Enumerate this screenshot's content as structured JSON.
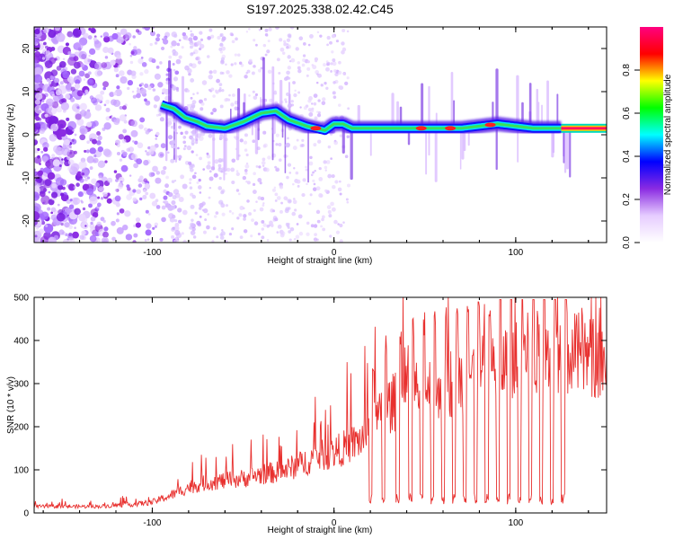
{
  "title": "S197.2025.338.02.42.C45",
  "chart_data": [
    {
      "type": "heatmap",
      "title": "",
      "xlabel": "Height of straight line (km)",
      "ylabel": "Frequency (Hz)",
      "xlim": [
        -165,
        150
      ],
      "ylim": [
        -25,
        25
      ],
      "x_ticks": [
        -100,
        0,
        100
      ],
      "x_tick_labels": [
        "-100",
        "0",
        "100"
      ],
      "y_ticks": [
        -20,
        -10,
        0,
        10,
        20
      ],
      "y_tick_labels": [
        "-20",
        "-10",
        "0",
        "10",
        "20"
      ],
      "ridge": {
        "name": "dominant frequency track",
        "x": [
          -95,
          -88,
          -82,
          -75,
          -70,
          -60,
          -50,
          -40,
          -32,
          -25,
          -15,
          -5,
          0,
          5,
          10,
          20,
          30,
          40,
          50,
          60,
          70,
          80,
          90,
          100,
          110,
          125,
          150
        ],
        "y": [
          7,
          6,
          4,
          3,
          2,
          1.5,
          3,
          5,
          5.5,
          3.5,
          2,
          1,
          2.5,
          2.5,
          1.5,
          1.5,
          1.5,
          1.5,
          1.5,
          1.5,
          1.5,
          2,
          2.5,
          2,
          1.5,
          1.5,
          1.5
        ]
      },
      "colorbar": {
        "label": "Normalized spectral amplitude",
        "range": [
          0,
          1
        ],
        "ticks": [
          0.0,
          0.2,
          0.4,
          0.6,
          0.8
        ],
        "tick_labels": [
          "0.0",
          "0.2",
          "0.4",
          "0.6",
          "0.8"
        ],
        "colors": [
          "#ffffff",
          "#e6ccff",
          "#8a2be2",
          "#0000ff",
          "#00ffff",
          "#00ff00",
          "#ffff00",
          "#ff0000",
          "#ff0080"
        ]
      }
    },
    {
      "type": "line",
      "title": "",
      "xlabel": "Height of straight line (km)",
      "ylabel": "SNR (10 * v/v)",
      "xlim": [
        -165,
        150
      ],
      "ylim": [
        0,
        500
      ],
      "x_ticks": [
        -100,
        0,
        100
      ],
      "x_tick_labels": [
        "-100",
        "0",
        "100"
      ],
      "y_ticks": [
        0,
        100,
        200,
        300,
        400,
        500
      ],
      "y_tick_labels": [
        "0",
        "100",
        "200",
        "300",
        "400",
        "500"
      ],
      "series": [
        {
          "name": "SNR",
          "color": "#e8302e",
          "x": [
            -165,
            -150,
            -130,
            -110,
            -100,
            -90,
            -80,
            -70,
            -60,
            -50,
            -40,
            -30,
            -20,
            -10,
            0,
            10,
            15,
            20,
            25,
            30,
            40,
            50,
            60,
            70,
            80,
            90,
            100,
            110,
            120,
            130,
            140,
            150
          ],
          "y": [
            15,
            15,
            15,
            20,
            25,
            40,
            60,
            70,
            75,
            80,
            90,
            95,
            110,
            130,
            140,
            160,
            170,
            200,
            220,
            250,
            270,
            290,
            300,
            310,
            330,
            340,
            360,
            370,
            375,
            370,
            360,
            355
          ]
        }
      ]
    }
  ]
}
